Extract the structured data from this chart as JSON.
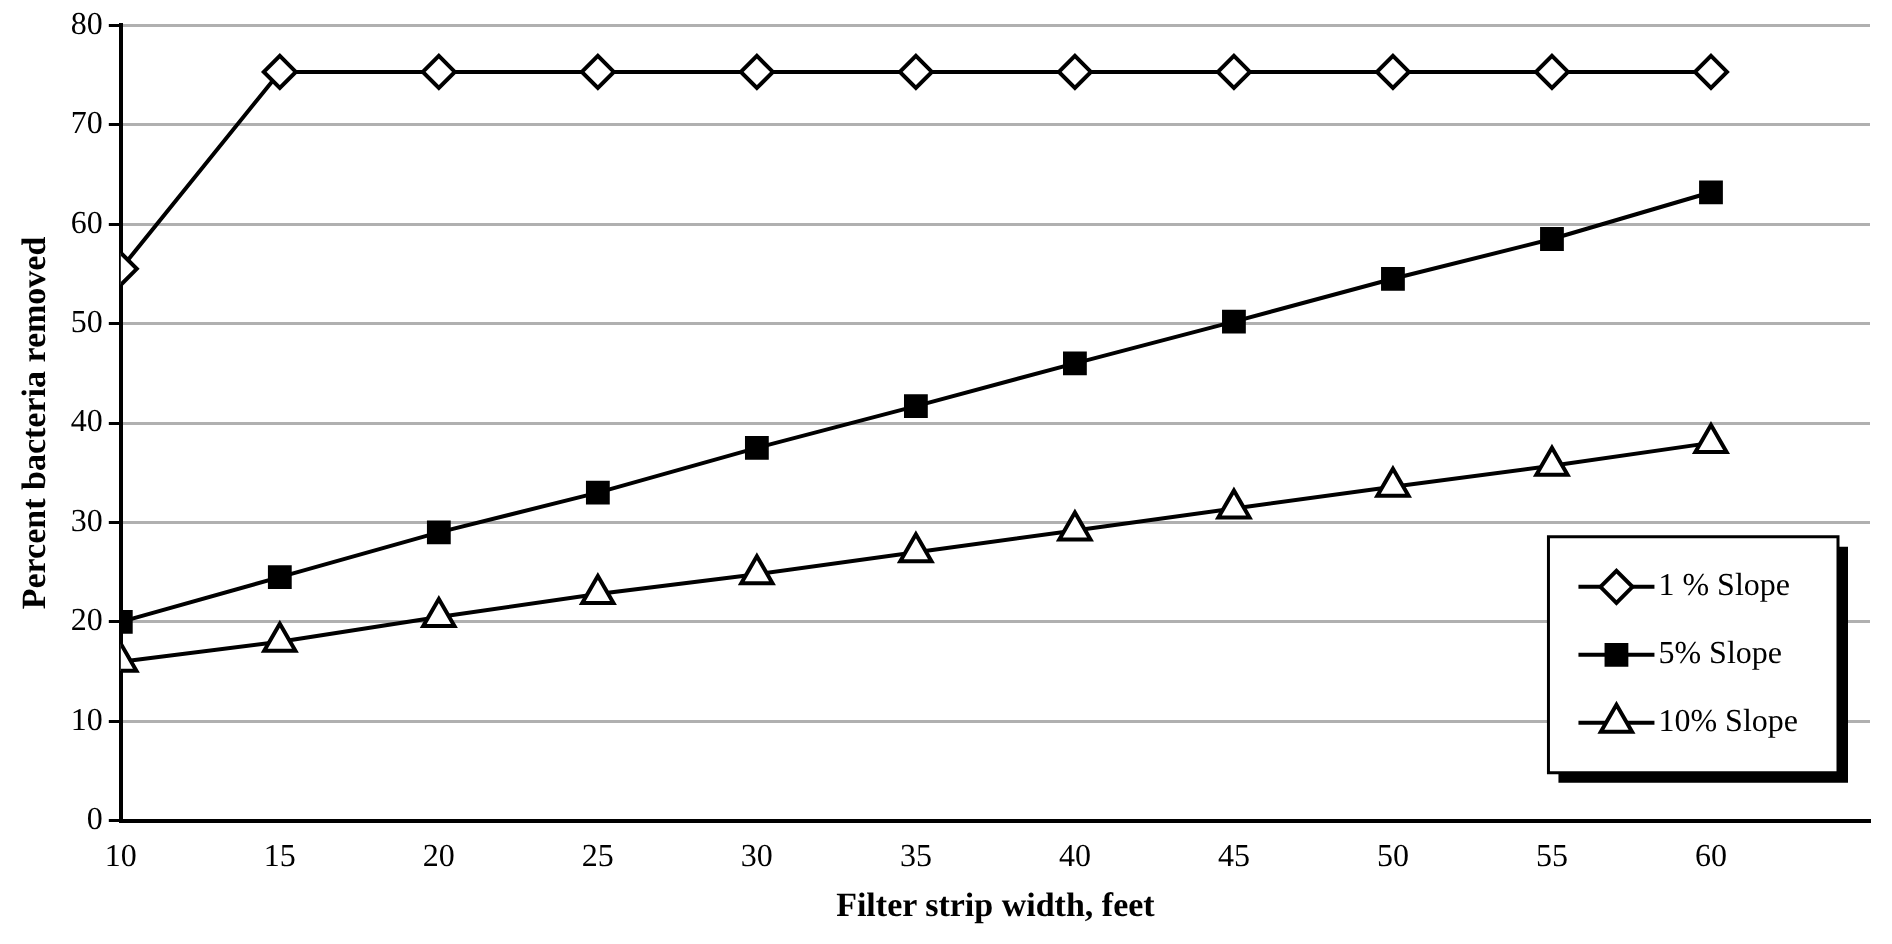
{
  "chart_data": {
    "type": "line",
    "xlabel": "Filter strip width, feet",
    "ylabel": "Percent bacteria removed",
    "x": [
      10,
      15,
      20,
      25,
      30,
      35,
      40,
      45,
      50,
      55,
      60
    ],
    "series": [
      {
        "name": "1 % Slope",
        "color": "#000000",
        "marker": "diamond",
        "values": [
          55.5,
          75.3,
          75.3,
          75.3,
          75.3,
          75.3,
          75.3,
          75.3,
          75.3,
          75.3,
          75.3
        ]
      },
      {
        "name": "5% Slope",
        "color": "#000000",
        "marker": "square",
        "values": [
          20,
          24.5,
          29,
          33,
          37.5,
          41.7,
          46,
          50.2,
          54.5,
          58.5,
          63.2
        ]
      },
      {
        "name": "10% Slope",
        "color": "#000000",
        "marker": "triangle",
        "values": [
          16,
          18,
          20.5,
          22.8,
          24.8,
          27,
          29.2,
          31.4,
          33.6,
          35.7,
          38
        ]
      }
    ],
    "xlim": [
      10,
      65
    ],
    "xticks": [
      10,
      15,
      20,
      25,
      30,
      35,
      40,
      45,
      50,
      55,
      60
    ],
    "ylim": [
      0,
      80
    ],
    "yticks": [
      0,
      10,
      20,
      30,
      40,
      50,
      60,
      70,
      80
    ],
    "grid": "y",
    "legend": "bottom right",
    "line_style": "solid"
  }
}
